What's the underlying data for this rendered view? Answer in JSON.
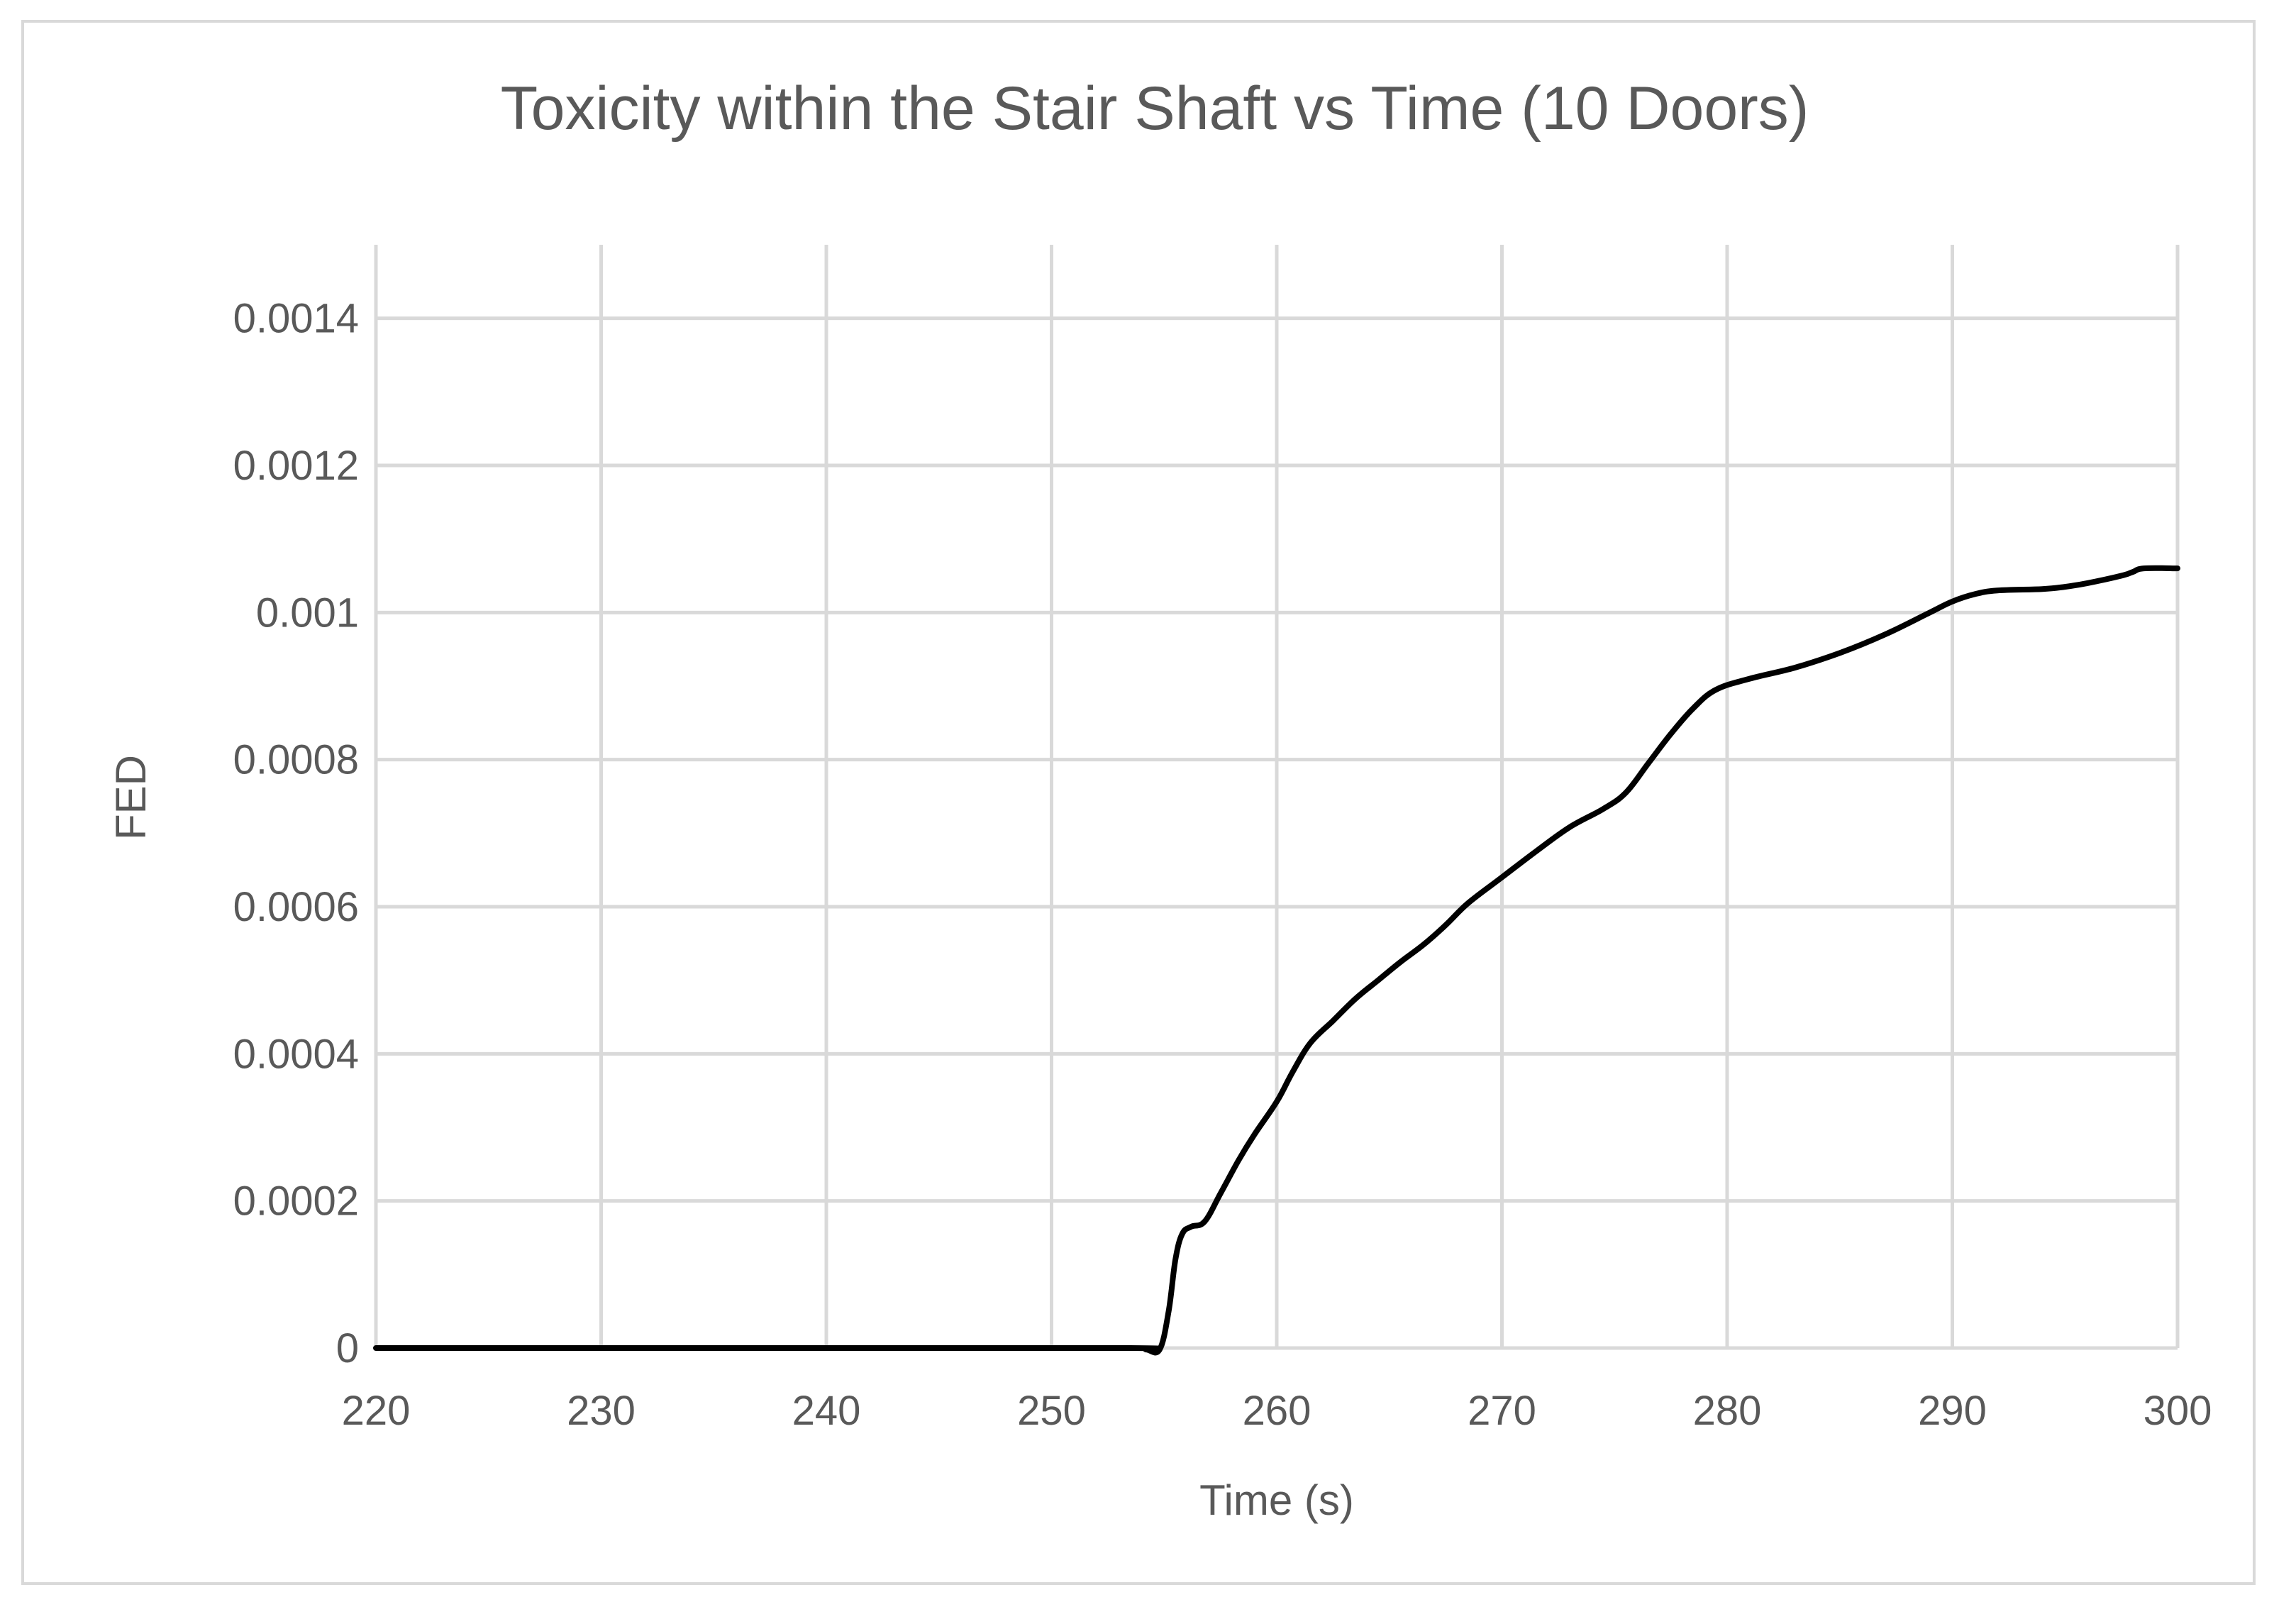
{
  "chart_data": {
    "type": "line",
    "title": "Toxicity within the Stair Shaft vs Time (10 Doors)",
    "xlabel": "Time (s)",
    "ylabel": "FED",
    "xlim": [
      220,
      300
    ],
    "ylim": [
      0,
      0.0015
    ],
    "x_ticks": [
      "220",
      "230",
      "240",
      "250",
      "260",
      "270",
      "280",
      "290",
      "300"
    ],
    "y_ticks": [
      "0",
      "0.0002",
      "0.0004",
      "0.0006",
      "0.0008",
      "0.001",
      "0.0012",
      "0.0014"
    ],
    "grid": true,
    "legend": false,
    "colors": {
      "line": "#000000",
      "grid": "#d9d9d9",
      "text": "#595959",
      "border": "#d9d9d9"
    },
    "series": [
      {
        "x": [
          220,
          240,
          253.5,
          254.2,
          254.8,
          255.2,
          255.5,
          255.8,
          256.2,
          256.8,
          257.5,
          258.3,
          259,
          260,
          260.7,
          261.5,
          262.5,
          263.5,
          264.5,
          265.5,
          266.5,
          267.5,
          268.5,
          270,
          271.5,
          273,
          274.5,
          275.5,
          276.5,
          277.5,
          278.5,
          279.5,
          281,
          283,
          285,
          287,
          289,
          290,
          291,
          292,
          294,
          295,
          296,
          297.5,
          298,
          298.5,
          300
        ],
        "y": [
          0,
          0,
          0,
          -2e-06,
          -2e-06,
          5e-05,
          0.00012,
          0.000155,
          0.000165,
          0.000172,
          0.00021,
          0.000255,
          0.00029,
          0.000335,
          0.000375,
          0.000415,
          0.000445,
          0.000475,
          0.0005,
          0.000525,
          0.000548,
          0.000575,
          0.000605,
          0.00064,
          0.000675,
          0.000708,
          0.000733,
          0.000755,
          0.000795,
          0.000835,
          0.00087,
          0.000895,
          0.00091,
          0.000925,
          0.000945,
          0.00097,
          0.001,
          0.001015,
          0.001025,
          0.00103,
          0.001032,
          0.001035,
          0.00104,
          0.00105,
          0.001055,
          0.00106,
          0.00106
        ]
      }
    ]
  }
}
